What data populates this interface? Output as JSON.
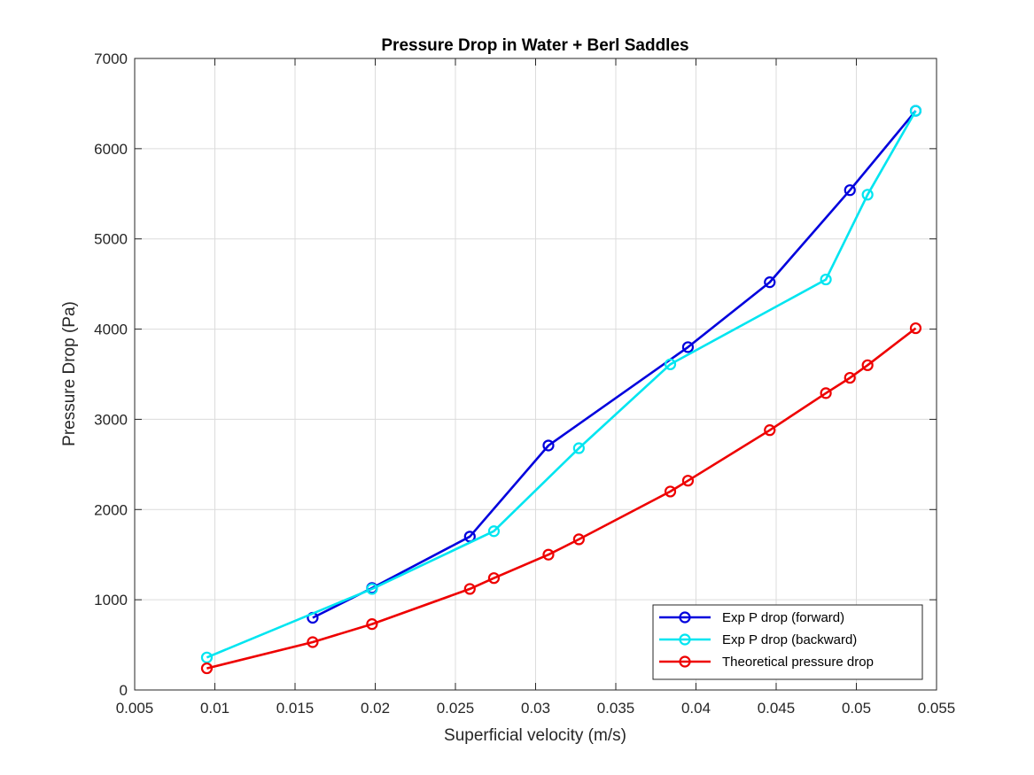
{
  "chart_data": {
    "type": "line",
    "title": "Pressure Drop in Water + Berl Saddles",
    "xlabel": "Superficial velocity (m/s)",
    "ylabel": "Pressure Drop (Pa)",
    "xlim": [
      0.005,
      0.055
    ],
    "ylim": [
      0,
      7000
    ],
    "xticks": [
      0.005,
      0.01,
      0.015,
      0.02,
      0.025,
      0.03,
      0.035,
      0.04,
      0.045,
      0.05,
      0.055
    ],
    "xtick_labels": [
      "0.005",
      "0.01",
      "0.015",
      "0.02",
      "0.025",
      "0.03",
      "0.035",
      "0.04",
      "0.045",
      "0.05",
      "0.055"
    ],
    "yticks": [
      0,
      1000,
      2000,
      3000,
      4000,
      5000,
      6000,
      7000
    ],
    "ytick_labels": [
      "0",
      "1000",
      "2000",
      "3000",
      "4000",
      "5000",
      "6000",
      "7000"
    ],
    "grid": true,
    "legend_position": "bottom-right",
    "series": [
      {
        "name": "Exp P drop (forward)",
        "color": "#0000dd",
        "marker": "circle",
        "x": [
          0.0161,
          0.0198,
          0.0259,
          0.0308,
          0.0395,
          0.0446,
          0.0496,
          0.0537
        ],
        "y": [
          800,
          1130,
          1700,
          2710,
          3800,
          4520,
          5540,
          6420
        ]
      },
      {
        "name": "Exp P drop (backward)",
        "color": "#00e5f0",
        "marker": "circle",
        "x": [
          0.0095,
          0.0198,
          0.0274,
          0.0327,
          0.0384,
          0.0481,
          0.0507,
          0.0537
        ],
        "y": [
          360,
          1120,
          1760,
          2680,
          3610,
          4550,
          5490,
          6420
        ]
      },
      {
        "name": "Theoretical pressure drop",
        "color": "#ee0000",
        "marker": "circle",
        "x": [
          0.0095,
          0.0161,
          0.0198,
          0.0259,
          0.0274,
          0.0308,
          0.0327,
          0.0384,
          0.0395,
          0.0446,
          0.0481,
          0.0496,
          0.0507,
          0.0537
        ],
        "y": [
          240,
          530,
          730,
          1120,
          1240,
          1500,
          1670,
          2200,
          2320,
          2880,
          3290,
          3460,
          3600,
          4010
        ]
      }
    ]
  }
}
